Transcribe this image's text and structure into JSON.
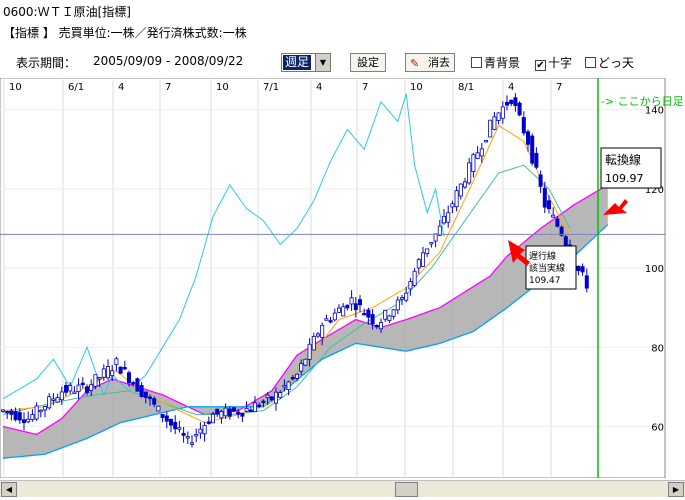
{
  "header": {
    "title": "0600:ＷＴＩ原油[指標]",
    "info": "【指標 】 売買単位:一株／発行済株式数:一株"
  },
  "toolbar": {
    "period_label": "表示期間：",
    "period_value": "2005/09/09 - 2008/09/22",
    "interval_select": "週足",
    "settings_button": "設定",
    "erase_button": "消去",
    "blue_bg_label": "青背景",
    "cross_label": "十字",
    "either_label": "どっ天",
    "cross_checked": "✔"
  },
  "colors": {
    "candle": "#0000cc",
    "tenkan": "#ffa500",
    "kijun": "#40c0a0",
    "chikou": "#2ec8e8",
    "span_a": "#ff00ff",
    "span_b": "#00a0ff",
    "cloud": "#aaaaaa",
    "arrow": "#ff0000",
    "future_line": "#00c000"
  },
  "chart_data": {
    "type": "candlestick",
    "x_axis_labels": [
      "10",
      "6/1",
      "4",
      "7",
      "10",
      "7/1",
      "4",
      "7",
      "10",
      "8/1",
      "4",
      "7"
    ],
    "y_ticks": [
      60,
      80,
      100,
      120,
      140
    ],
    "ylim": [
      47,
      148
    ],
    "crosshair_y": 108.5,
    "price_path": [
      [
        0,
        64
      ],
      [
        6,
        62
      ],
      [
        14,
        69
      ],
      [
        20,
        70
      ],
      [
        27,
        76
      ],
      [
        32,
        70
      ],
      [
        37,
        64
      ],
      [
        44,
        56
      ],
      [
        50,
        63
      ],
      [
        57,
        64
      ],
      [
        64,
        67
      ],
      [
        70,
        73
      ],
      [
        76,
        86
      ],
      [
        83,
        92
      ],
      [
        89,
        86
      ],
      [
        95,
        92
      ],
      [
        100,
        104
      ],
      [
        104,
        110
      ],
      [
        110,
        123
      ],
      [
        117,
        138
      ],
      [
        121,
        143
      ],
      [
        125,
        132
      ],
      [
        129,
        116
      ],
      [
        133,
        109
      ],
      [
        136,
        101
      ],
      [
        139,
        96
      ]
    ],
    "tenkan_path": [
      [
        0,
        64
      ],
      [
        10,
        65
      ],
      [
        20,
        70
      ],
      [
        27,
        74
      ],
      [
        34,
        68
      ],
      [
        42,
        64
      ],
      [
        48,
        61
      ],
      [
        56,
        63
      ],
      [
        64,
        66
      ],
      [
        72,
        76
      ],
      [
        80,
        87
      ],
      [
        88,
        90
      ],
      [
        96,
        95
      ],
      [
        104,
        104
      ],
      [
        112,
        122
      ],
      [
        118,
        136
      ],
      [
        124,
        132
      ],
      [
        130,
        118
      ],
      [
        135,
        108
      ]
    ],
    "kijun_path": [
      [
        0,
        63
      ],
      [
        12,
        66
      ],
      [
        22,
        68
      ],
      [
        30,
        69
      ],
      [
        38,
        66
      ],
      [
        46,
        63
      ],
      [
        54,
        63
      ],
      [
        62,
        64
      ],
      [
        70,
        70
      ],
      [
        78,
        80
      ],
      [
        86,
        86
      ],
      [
        94,
        91
      ],
      [
        102,
        100
      ],
      [
        110,
        112
      ],
      [
        118,
        124
      ],
      [
        124,
        126
      ],
      [
        130,
        120
      ],
      [
        135,
        110
      ]
    ],
    "chikou_path": [
      [
        0,
        67
      ],
      [
        8,
        72
      ],
      [
        12,
        77
      ],
      [
        16,
        70
      ],
      [
        20,
        80
      ],
      [
        24,
        68
      ],
      [
        26,
        73
      ],
      [
        30,
        69
      ],
      [
        34,
        73
      ],
      [
        38,
        80
      ],
      [
        42,
        87
      ],
      [
        46,
        98
      ],
      [
        50,
        113
      ],
      [
        54,
        121
      ],
      [
        58,
        115
      ],
      [
        62,
        112
      ],
      [
        66,
        106
      ],
      [
        70,
        110
      ],
      [
        74,
        117
      ],
      [
        78,
        127
      ],
      [
        82,
        135
      ],
      [
        86,
        130
      ],
      [
        90,
        142
      ],
      [
        94,
        137
      ],
      [
        96,
        144
      ],
      [
        98,
        126
      ],
      [
        101,
        114
      ],
      [
        103,
        120
      ],
      [
        105,
        108
      ]
    ],
    "span_a_path": [
      [
        0,
        60
      ],
      [
        8,
        58
      ],
      [
        14,
        62
      ],
      [
        20,
        69
      ],
      [
        26,
        72
      ],
      [
        32,
        70
      ],
      [
        38,
        68
      ],
      [
        44,
        65
      ],
      [
        48,
        63
      ],
      [
        56,
        64
      ],
      [
        64,
        69
      ],
      [
        70,
        78
      ],
      [
        76,
        82
      ],
      [
        84,
        87
      ],
      [
        90,
        85
      ],
      [
        96,
        87
      ],
      [
        104,
        90
      ],
      [
        110,
        94
      ],
      [
        116,
        98
      ],
      [
        120,
        103
      ],
      [
        128,
        110
      ],
      [
        136,
        116
      ],
      [
        144,
        121
      ]
    ],
    "span_b_path": [
      [
        0,
        52
      ],
      [
        10,
        53
      ],
      [
        20,
        57
      ],
      [
        28,
        61
      ],
      [
        36,
        63
      ],
      [
        44,
        65
      ],
      [
        48,
        65
      ],
      [
        56,
        65
      ],
      [
        62,
        65
      ],
      [
        68,
        70
      ],
      [
        76,
        77
      ],
      [
        84,
        81
      ],
      [
        90,
        80
      ],
      [
        96,
        79
      ],
      [
        104,
        81
      ],
      [
        112,
        84
      ],
      [
        120,
        90
      ],
      [
        126,
        95
      ],
      [
        134,
        101
      ],
      [
        144,
        111
      ]
    ],
    "label_future": "-> ここから日足",
    "callout_tenkan": {
      "title": "転換線",
      "value": "109.97"
    },
    "callout_chikou": {
      "line1": "遅行線",
      "line2": "該当実線",
      "value": "109.47"
    }
  }
}
